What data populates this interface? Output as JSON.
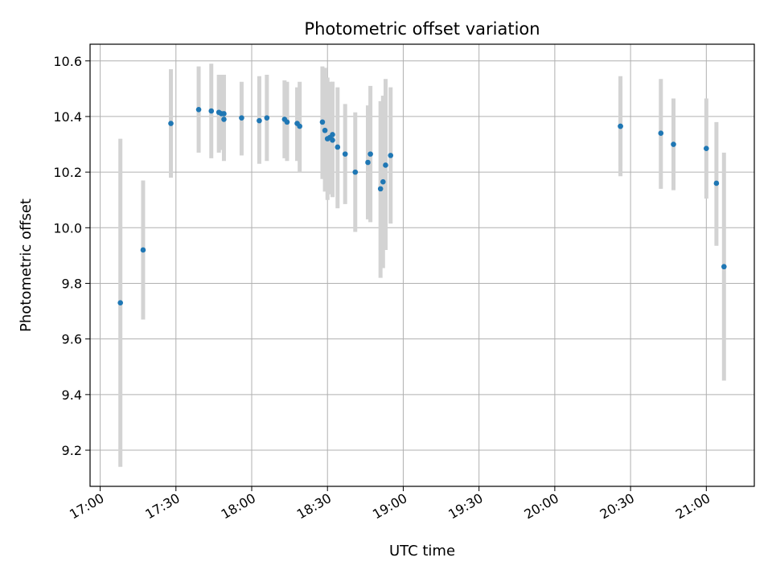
{
  "chart_data": {
    "type": "scatter",
    "title": "Photometric offset variation",
    "xlabel": "UTC time",
    "ylabel": "Photometric offset",
    "x_unit": "UTC HH:MM",
    "xlim": [
      "16:56",
      "21:19"
    ],
    "ylim": [
      9.07,
      10.66
    ],
    "x_ticks": [
      "17:00",
      "17:30",
      "18:00",
      "18:30",
      "19:00",
      "19:30",
      "20:00",
      "20:30",
      "21:00"
    ],
    "y_ticks": [
      9.2,
      9.4,
      9.6,
      9.8,
      10.0,
      10.2,
      10.4,
      10.6
    ],
    "y_tick_labels": [
      "9.2",
      "9.4",
      "9.6",
      "9.8",
      "10.0",
      "10.2",
      "10.4",
      "10.6"
    ],
    "grid": true,
    "marker_color": "#1f77b4",
    "errorbar_color": "#d3d3d3",
    "points": [
      {
        "t": "17:08",
        "y": 9.73,
        "lo": 9.14,
        "hi": 10.32
      },
      {
        "t": "17:17",
        "y": 9.92,
        "lo": 9.67,
        "hi": 10.17
      },
      {
        "t": "17:28",
        "y": 10.375,
        "lo": 10.18,
        "hi": 10.57
      },
      {
        "t": "17:39",
        "y": 10.425,
        "lo": 10.27,
        "hi": 10.58
      },
      {
        "t": "17:44",
        "y": 10.42,
        "lo": 10.25,
        "hi": 10.59
      },
      {
        "t": "17:47",
        "y": 10.415,
        "lo": 10.27,
        "hi": 10.55
      },
      {
        "t": "17:48",
        "y": 10.41,
        "lo": 10.28,
        "hi": 10.55
      },
      {
        "t": "17:49",
        "y": 10.39,
        "lo": 10.24,
        "hi": 10.55
      },
      {
        "t": "17:49",
        "y": 10.41,
        "lo": 10.27,
        "hi": 10.55
      },
      {
        "t": "17:56",
        "y": 10.395,
        "lo": 10.26,
        "hi": 10.525
      },
      {
        "t": "18:03",
        "y": 10.385,
        "lo": 10.23,
        "hi": 10.545
      },
      {
        "t": "18:06",
        "y": 10.395,
        "lo": 10.24,
        "hi": 10.55
      },
      {
        "t": "18:13",
        "y": 10.39,
        "lo": 10.25,
        "hi": 10.53
      },
      {
        "t": "18:14",
        "y": 10.38,
        "lo": 10.24,
        "hi": 10.525
      },
      {
        "t": "18:18",
        "y": 10.375,
        "lo": 10.24,
        "hi": 10.505
      },
      {
        "t": "18:19",
        "y": 10.365,
        "lo": 10.2,
        "hi": 10.525
      },
      {
        "t": "18:28",
        "y": 10.38,
        "lo": 10.175,
        "hi": 10.58
      },
      {
        "t": "18:29",
        "y": 10.35,
        "lo": 10.13,
        "hi": 10.575
      },
      {
        "t": "18:30",
        "y": 10.32,
        "lo": 10.1,
        "hi": 10.54
      },
      {
        "t": "18:31",
        "y": 10.325,
        "lo": 10.12,
        "hi": 10.525
      },
      {
        "t": "18:32",
        "y": 10.315,
        "lo": 10.11,
        "hi": 10.525
      },
      {
        "t": "18:32",
        "y": 10.335,
        "lo": 10.14,
        "hi": 10.525
      },
      {
        "t": "18:34",
        "y": 10.29,
        "lo": 10.07,
        "hi": 10.505
      },
      {
        "t": "18:37",
        "y": 10.265,
        "lo": 10.085,
        "hi": 10.445
      },
      {
        "t": "18:41",
        "y": 10.2,
        "lo": 9.985,
        "hi": 10.415
      },
      {
        "t": "18:46",
        "y": 10.235,
        "lo": 10.03,
        "hi": 10.44
      },
      {
        "t": "18:47",
        "y": 10.265,
        "lo": 10.02,
        "hi": 10.51
      },
      {
        "t": "18:51",
        "y": 10.14,
        "lo": 9.82,
        "hi": 10.455
      },
      {
        "t": "18:52",
        "y": 10.165,
        "lo": 9.855,
        "hi": 10.475
      },
      {
        "t": "18:53",
        "y": 10.225,
        "lo": 9.92,
        "hi": 10.535
      },
      {
        "t": "18:55",
        "y": 10.26,
        "lo": 10.015,
        "hi": 10.505
      },
      {
        "t": "20:26",
        "y": 10.365,
        "lo": 10.185,
        "hi": 10.545
      },
      {
        "t": "20:26",
        "y": 10.365,
        "lo": 10.22,
        "hi": 10.51
      },
      {
        "t": "20:42",
        "y": 10.34,
        "lo": 10.14,
        "hi": 10.535
      },
      {
        "t": "20:47",
        "y": 10.3,
        "lo": 10.135,
        "hi": 10.465
      },
      {
        "t": "21:00",
        "y": 10.285,
        "lo": 10.105,
        "hi": 10.465
      },
      {
        "t": "21:04",
        "y": 10.16,
        "lo": 9.935,
        "hi": 10.38
      },
      {
        "t": "21:07",
        "y": 9.86,
        "lo": 9.45,
        "hi": 10.27
      }
    ]
  }
}
